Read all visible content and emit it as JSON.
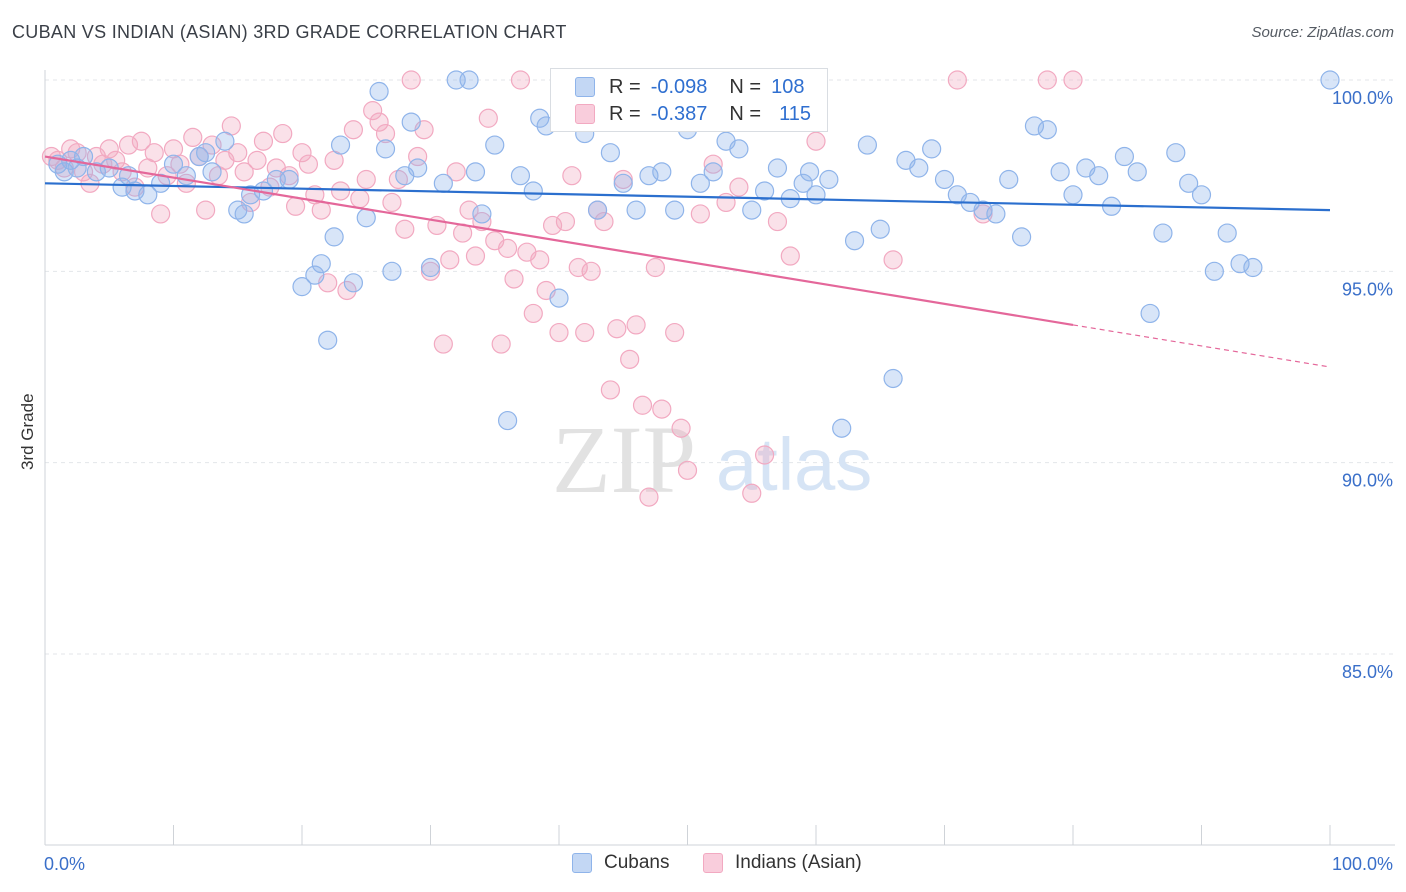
{
  "header": {
    "title": "CUBAN VS INDIAN (ASIAN) 3RD GRADE CORRELATION CHART",
    "source": "Source: ZipAtlas.com"
  },
  "legend": {
    "cubans": {
      "r_label": "R =",
      "r_value": "-0.098",
      "n_label": "N =",
      "n_value": "108"
    },
    "indians": {
      "r_label": "R =",
      "r_value": "-0.387",
      "n_label": "N =",
      "n_value": "115"
    }
  },
  "bottom_legend": {
    "cubans": "Cubans",
    "indians": "Indians (Asian)"
  },
  "watermark": {
    "zip": "ZIP",
    "atlas": "atlas"
  },
  "chart_data": {
    "type": "scatter",
    "title": "CUBAN VS INDIAN (ASIAN) 3RD GRADE CORRELATION CHART",
    "xlabel": "",
    "ylabel": "3rd Grade",
    "xlim": [
      0,
      100
    ],
    "ylim": [
      80.5,
      100.5
    ],
    "x_tick_labels": [
      "0.0%",
      "100.0%"
    ],
    "y_ticks": [
      100,
      95,
      90,
      85
    ],
    "y_tick_labels": [
      "100.0%",
      "95.0%",
      "90.0%",
      "85.0%"
    ],
    "colors": {
      "cubans": "#8fb4ea",
      "cubans_line": "#2b6fce",
      "indians": "#f2a9c1",
      "indians_line": "#e4679a",
      "tick_text": "#3a6fc9"
    },
    "series": [
      {
        "name": "Cubans",
        "trend": {
          "x0": 0,
          "y0": 97.3,
          "x1": 100,
          "y1": 96.6
        },
        "points": [
          [
            1,
            97.8
          ],
          [
            1.5,
            97.6
          ],
          [
            2,
            97.9
          ],
          [
            2.5,
            97.7
          ],
          [
            3,
            98
          ],
          [
            4,
            97.6
          ],
          [
            5,
            97.7
          ],
          [
            6,
            97.2
          ],
          [
            6.5,
            97.5
          ],
          [
            7,
            97.1
          ],
          [
            8,
            97
          ],
          [
            9,
            97.3
          ],
          [
            10,
            97.8
          ],
          [
            11,
            97.5
          ],
          [
            12,
            98
          ],
          [
            12.5,
            98.1
          ],
          [
            13,
            97.6
          ],
          [
            14,
            98.4
          ],
          [
            15,
            96.6
          ],
          [
            15.5,
            96.5
          ],
          [
            16,
            97
          ],
          [
            17,
            97.1
          ],
          [
            18,
            97.4
          ],
          [
            19,
            97.4
          ],
          [
            20,
            94.6
          ],
          [
            21,
            94.9
          ],
          [
            21.5,
            95.2
          ],
          [
            22,
            93.2
          ],
          [
            22.5,
            95.9
          ],
          [
            23,
            98.3
          ],
          [
            24,
            94.7
          ],
          [
            25,
            96.4
          ],
          [
            26,
            99.7
          ],
          [
            26.5,
            98.2
          ],
          [
            27,
            95
          ],
          [
            28,
            97.5
          ],
          [
            28.5,
            98.9
          ],
          [
            29,
            97.7
          ],
          [
            30,
            95.1
          ],
          [
            31,
            97.3
          ],
          [
            32,
            100
          ],
          [
            33,
            100
          ],
          [
            33.5,
            97.6
          ],
          [
            34,
            96.5
          ],
          [
            35,
            98.3
          ],
          [
            36,
            91.1
          ],
          [
            37,
            97.5
          ],
          [
            38,
            97.1
          ],
          [
            38.5,
            99
          ],
          [
            39,
            98.8
          ],
          [
            40,
            94.3
          ],
          [
            41,
            99.2
          ],
          [
            42,
            98.6
          ],
          [
            43,
            96.6
          ],
          [
            44,
            98.1
          ],
          [
            45,
            97.3
          ],
          [
            46,
            96.6
          ],
          [
            47,
            97.5
          ],
          [
            48,
            97.6
          ],
          [
            49,
            96.6
          ],
          [
            50,
            98.7
          ],
          [
            51,
            97.3
          ],
          [
            52,
            97.6
          ],
          [
            53,
            98.4
          ],
          [
            54,
            98.2
          ],
          [
            55,
            96.6
          ],
          [
            56,
            97.1
          ],
          [
            57,
            97.7
          ],
          [
            58,
            96.9
          ],
          [
            59,
            97.3
          ],
          [
            59.5,
            97.6
          ],
          [
            60,
            97
          ],
          [
            61,
            97.4
          ],
          [
            62,
            90.9
          ],
          [
            63,
            95.8
          ],
          [
            64,
            98.3
          ],
          [
            65,
            96.1
          ],
          [
            66,
            92.2
          ],
          [
            67,
            97.9
          ],
          [
            68,
            97.7
          ],
          [
            69,
            98.2
          ],
          [
            70,
            97.4
          ],
          [
            71,
            97
          ],
          [
            72,
            96.8
          ],
          [
            73,
            96.6
          ],
          [
            74,
            96.5
          ],
          [
            75,
            97.4
          ],
          [
            76,
            95.9
          ],
          [
            77,
            98.8
          ],
          [
            78,
            98.7
          ],
          [
            79,
            97.6
          ],
          [
            80,
            97
          ],
          [
            81,
            97.7
          ],
          [
            82,
            97.5
          ],
          [
            83,
            96.7
          ],
          [
            84,
            98
          ],
          [
            85,
            97.6
          ],
          [
            86,
            93.9
          ],
          [
            87,
            96
          ],
          [
            88,
            98.1
          ],
          [
            89,
            97.3
          ],
          [
            90,
            97
          ],
          [
            91,
            95
          ],
          [
            92,
            96
          ],
          [
            93,
            95.2
          ],
          [
            94,
            95.1
          ],
          [
            100,
            100
          ]
        ]
      },
      {
        "name": "Indians (Asian)",
        "trend": {
          "x0": 0,
          "y0": 98,
          "x1": 100,
          "y1": 92.5,
          "solid_until": 80
        },
        "points": [
          [
            0.5,
            98
          ],
          [
            1,
            97.9
          ],
          [
            1.5,
            97.7
          ],
          [
            2,
            98.2
          ],
          [
            2.5,
            98.1
          ],
          [
            3,
            97.6
          ],
          [
            3.5,
            97.3
          ],
          [
            4,
            98
          ],
          [
            4.5,
            97.8
          ],
          [
            5,
            98.2
          ],
          [
            5.5,
            97.9
          ],
          [
            6,
            97.6
          ],
          [
            6.5,
            98.3
          ],
          [
            7,
            97.2
          ],
          [
            7.5,
            98.4
          ],
          [
            8,
            97.7
          ],
          [
            8.5,
            98.1
          ],
          [
            9,
            96.5
          ],
          [
            9.5,
            97.5
          ],
          [
            10,
            98.2
          ],
          [
            10.5,
            97.8
          ],
          [
            11,
            97.3
          ],
          [
            11.5,
            98.5
          ],
          [
            12,
            98
          ],
          [
            12.5,
            96.6
          ],
          [
            13,
            98.3
          ],
          [
            13.5,
            97.5
          ],
          [
            14,
            97.9
          ],
          [
            14.5,
            98.8
          ],
          [
            15,
            98.1
          ],
          [
            15.5,
            97.6
          ],
          [
            16,
            96.8
          ],
          [
            16.5,
            97.9
          ],
          [
            17,
            98.4
          ],
          [
            17.5,
            97.2
          ],
          [
            18,
            97.7
          ],
          [
            18.5,
            98.6
          ],
          [
            19,
            97.5
          ],
          [
            19.5,
            96.7
          ],
          [
            20,
            98.1
          ],
          [
            20.5,
            97.8
          ],
          [
            21,
            97
          ],
          [
            21.5,
            96.6
          ],
          [
            22,
            94.7
          ],
          [
            22.5,
            97.9
          ],
          [
            23,
            97.1
          ],
          [
            23.5,
            94.5
          ],
          [
            24,
            98.7
          ],
          [
            24.5,
            96.9
          ],
          [
            25,
            97.4
          ],
          [
            25.5,
            99.2
          ],
          [
            26,
            98.9
          ],
          [
            26.5,
            98.6
          ],
          [
            27,
            96.8
          ],
          [
            27.5,
            97.4
          ],
          [
            28,
            96.1
          ],
          [
            28.5,
            100
          ],
          [
            29,
            98
          ],
          [
            29.5,
            98.7
          ],
          [
            30,
            95
          ],
          [
            30.5,
            96.2
          ],
          [
            31,
            93.1
          ],
          [
            31.5,
            95.3
          ],
          [
            32,
            97.6
          ],
          [
            32.5,
            96
          ],
          [
            33,
            96.6
          ],
          [
            33.5,
            95.4
          ],
          [
            34,
            96.3
          ],
          [
            34.5,
            99
          ],
          [
            35,
            95.8
          ],
          [
            35.5,
            93.1
          ],
          [
            36,
            95.6
          ],
          [
            36.5,
            94.8
          ],
          [
            37,
            100
          ],
          [
            37.5,
            95.5
          ],
          [
            38,
            93.9
          ],
          [
            38.5,
            95.3
          ],
          [
            39,
            94.5
          ],
          [
            39.5,
            96.2
          ],
          [
            40,
            93.4
          ],
          [
            40.5,
            96.3
          ],
          [
            41,
            97.5
          ],
          [
            41.5,
            95.1
          ],
          [
            42,
            93.4
          ],
          [
            42.5,
            95
          ],
          [
            43,
            96.6
          ],
          [
            43.5,
            96.3
          ],
          [
            44,
            91.9
          ],
          [
            44.5,
            93.5
          ],
          [
            45,
            97.4
          ],
          [
            45.5,
            92.7
          ],
          [
            46,
            93.6
          ],
          [
            46.5,
            91.5
          ],
          [
            47,
            89.1
          ],
          [
            47.5,
            95.1
          ],
          [
            48,
            91.4
          ],
          [
            48.5,
            100
          ],
          [
            49,
            93.4
          ],
          [
            49.5,
            90.9
          ],
          [
            50,
            89.8
          ],
          [
            51,
            96.5
          ],
          [
            52,
            97.8
          ],
          [
            53,
            96.8
          ],
          [
            54,
            97.2
          ],
          [
            55,
            89.2
          ],
          [
            56,
            90.2
          ],
          [
            57,
            96.3
          ],
          [
            58,
            95.4
          ],
          [
            60,
            98.4
          ],
          [
            66,
            95.3
          ],
          [
            71,
            100
          ],
          [
            73,
            96.5
          ],
          [
            78,
            100
          ],
          [
            80,
            100
          ]
        ]
      }
    ]
  }
}
